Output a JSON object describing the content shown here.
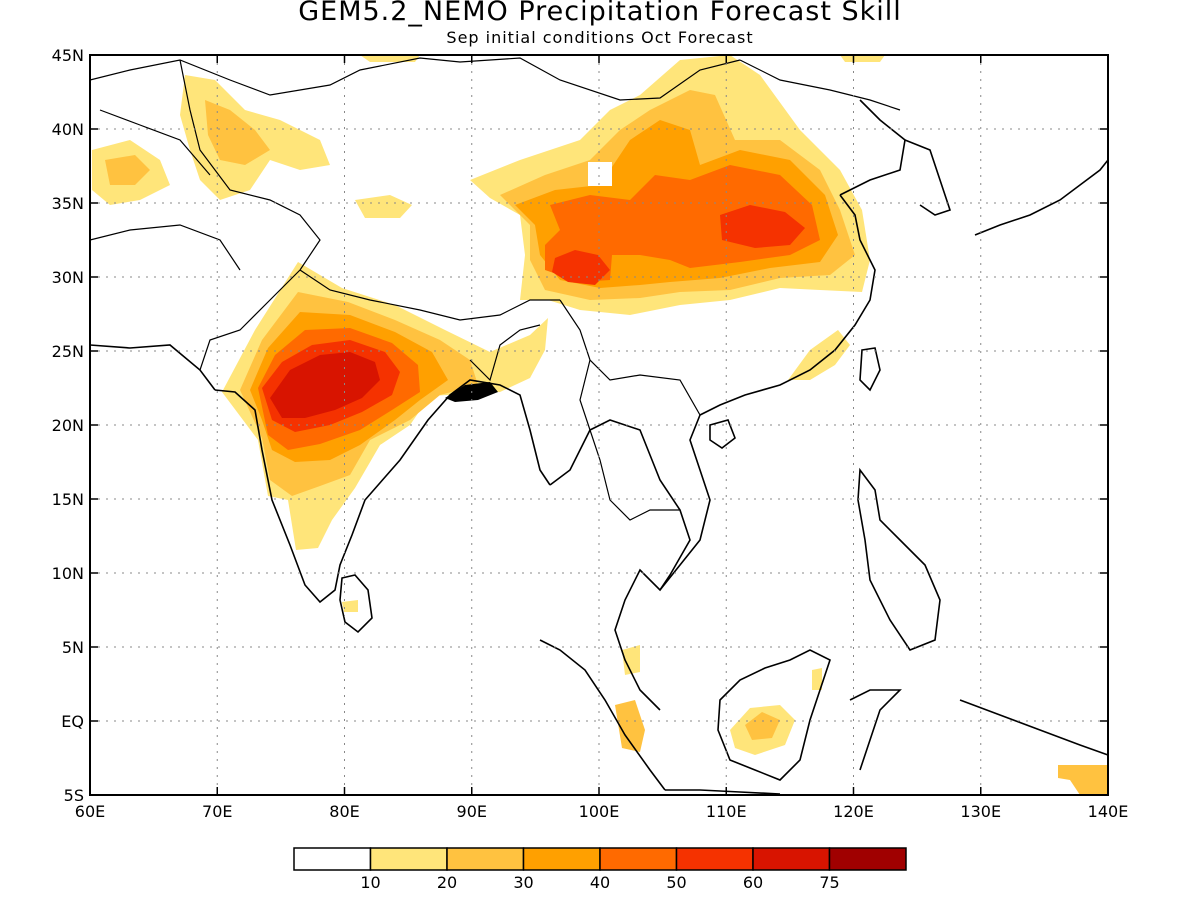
{
  "title": "GEM5.2_NEMO Precipitation Forecast Skill",
  "subtitle": "Sep initial conditions  Oct Forecast",
  "map": {
    "lon_range": [
      60,
      140
    ],
    "lat_range": [
      -5,
      45
    ],
    "lon_ticks": [
      "60E",
      "70E",
      "80E",
      "90E",
      "100E",
      "110E",
      "120E",
      "130E",
      "140E"
    ],
    "lat_ticks": [
      "5S",
      "EQ",
      "5N",
      "10N",
      "15N",
      "20N",
      "25N",
      "30N",
      "35N",
      "40N",
      "45N"
    ],
    "grid": "dotted"
  },
  "legend": {
    "colors": [
      "#ffffff",
      "#ffe57a",
      "#ffc240",
      "#ffa000",
      "#ff6a00",
      "#f53200",
      "#d81400",
      "#a00000"
    ],
    "labels": [
      "10",
      "20",
      "30",
      "40",
      "50",
      "60",
      "75"
    ]
  }
}
